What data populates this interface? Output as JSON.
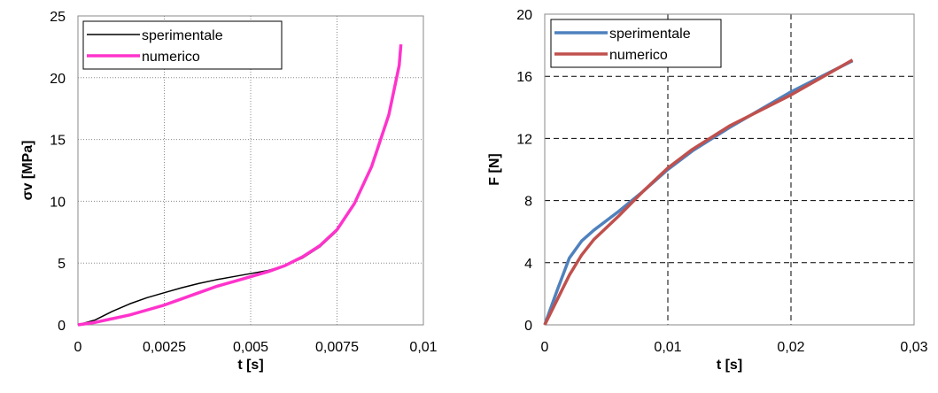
{
  "chart_data": [
    {
      "type": "line",
      "xlabel": "t [s]",
      "ylabel": "σv [MPa]",
      "xlim": [
        0,
        0.01
      ],
      "xticks": [
        0,
        {
          "value": 0.0025,
          "label": "0,0025"
        },
        {
          "value": 0.005,
          "label": "0,005"
        },
        {
          "value": 0.0075,
          "label": "0,0075"
        },
        {
          "value": 0.01,
          "label": "0,01"
        }
      ],
      "ylim": [
        0,
        25
      ],
      "yticks": [
        0,
        5,
        10,
        15,
        20,
        25
      ],
      "grid": "dotted",
      "legend": "top-left",
      "series": [
        {
          "name": "sperimentale",
          "color": "#000000",
          "x": [
            0,
            0.0005,
            0.001,
            0.0015,
            0.002,
            0.0025,
            0.003,
            0.0035,
            0.004,
            0.0045,
            0.005,
            0.0055,
            0.006,
            0.0065,
            0.007,
            0.0075
          ],
          "values": [
            0,
            0.4,
            1.1,
            1.7,
            2.2,
            2.6,
            3.0,
            3.35,
            3.65,
            3.9,
            4.15,
            4.4,
            4.8,
            5.4,
            6.3,
            7.6
          ]
        },
        {
          "name": "numerico",
          "color": "#ff33cc",
          "x": [
            0,
            0.0005,
            0.001,
            0.0015,
            0.002,
            0.0025,
            0.003,
            0.0035,
            0.004,
            0.0045,
            0.005,
            0.0055,
            0.006,
            0.0065,
            0.007,
            0.0075,
            0.008,
            0.0085,
            0.009,
            0.0093,
            0.00935
          ],
          "values": [
            0,
            0.2,
            0.5,
            0.8,
            1.2,
            1.6,
            2.1,
            2.6,
            3.1,
            3.5,
            3.9,
            4.3,
            4.8,
            5.5,
            6.4,
            7.7,
            9.8,
            12.8,
            17.0,
            21.0,
            22.7
          ]
        }
      ]
    },
    {
      "type": "line",
      "xlabel": "t [s]",
      "ylabel": "F [N]",
      "xlim": [
        0,
        0.03
      ],
      "xticks": [
        0,
        {
          "value": 0.01,
          "label": "0,01"
        },
        {
          "value": 0.02,
          "label": "0,02"
        },
        {
          "value": 0.03,
          "label": "0,03"
        }
      ],
      "ylim": [
        0,
        20
      ],
      "yticks": [
        0,
        4,
        8,
        12,
        16,
        20
      ],
      "grid": "dashed",
      "legend": "top-left",
      "series": [
        {
          "name": "sperimentale",
          "color": "#4f81bd",
          "x": [
            0,
            0.001,
            0.002,
            0.003,
            0.004,
            0.006,
            0.008,
            0.01,
            0.012,
            0.015,
            0.02,
            0.025
          ],
          "values": [
            0,
            2.2,
            4.3,
            5.4,
            6.1,
            7.3,
            8.6,
            10.0,
            11.2,
            12.7,
            15.0,
            17.0
          ]
        },
        {
          "name": "numerico",
          "color": "#c0504d",
          "x": [
            0,
            0.001,
            0.002,
            0.003,
            0.004,
            0.006,
            0.008,
            0.01,
            0.012,
            0.015,
            0.02,
            0.025
          ],
          "values": [
            0,
            1.6,
            3.2,
            4.5,
            5.5,
            7.0,
            8.6,
            10.1,
            11.3,
            12.8,
            14.8,
            17.05
          ]
        }
      ]
    }
  ]
}
